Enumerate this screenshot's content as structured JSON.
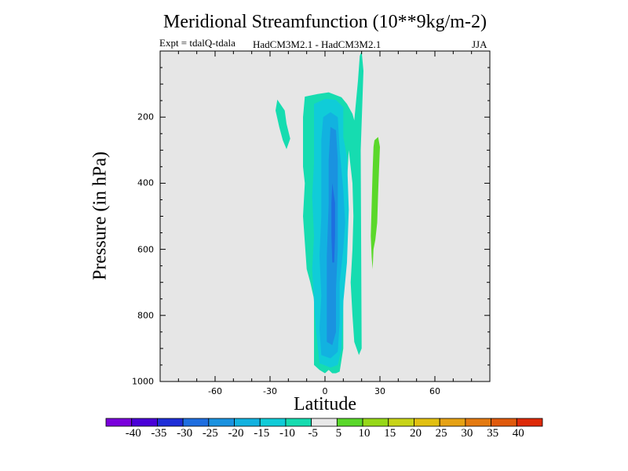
{
  "chart_data": {
    "type": "contour",
    "title": "Meridional Streamfunction (10**9kg/m-2)",
    "experiment": "Expt = tdalQ-tdala",
    "models": "HadCM3M2.1 - HadCM3M2.1",
    "season": "JJA",
    "xlabel": "Latitude",
    "ylabel": "Pressure (in hPa)",
    "xlim": [
      -90,
      90
    ],
    "ylim": [
      0,
      1000
    ],
    "x_ticks": [
      -60,
      -30,
      0,
      30,
      60
    ],
    "x_tick_labels": [
      "-60",
      "-30",
      "0",
      "30",
      "60"
    ],
    "y_ticks": [
      200,
      400,
      600,
      800,
      1000
    ],
    "y_tick_labels": [
      "200",
      "400",
      "600",
      "800",
      "1000"
    ],
    "levels": [
      -45,
      -40,
      -35,
      -30,
      -25,
      -20,
      -15,
      -10,
      -5,
      5,
      10,
      15,
      20,
      25,
      30,
      35,
      40,
      45
    ],
    "colorbar_labels": [
      "-40",
      "-35",
      "-30",
      "-25",
      "-20",
      "-15",
      "-10",
      "-5",
      "5",
      "10",
      "15",
      "20",
      "25",
      "30",
      "35",
      "40"
    ],
    "colors": [
      "#7a00dc",
      "#4a00d8",
      "#1e2ed8",
      "#1e6ee0",
      "#1a92e0",
      "#12b2e0",
      "#10ccd8",
      "#16dcb0",
      "#e8e8e8",
      "#5ad82a",
      "#96d818",
      "#c8d418",
      "#e2c010",
      "#e6a214",
      "#e47a10",
      "#e05a0c",
      "#de2a08"
    ],
    "background_color": "#e6e6e6",
    "contours": [
      {
        "level_min": -10,
        "level_max": -5,
        "lat_lon": [
          [
            -24,
            125
          ],
          [
            -25,
            175
          ],
          [
            -21,
            295
          ],
          [
            -19,
            215
          ],
          [
            -22,
            180
          ]
        ],
        "points": [
          [
            -25,
            230
          ],
          [
            -27,
            180
          ],
          [
            -26,
            147
          ],
          [
            -22,
            180
          ],
          [
            -21,
            220
          ],
          [
            -19,
            265
          ],
          [
            -21,
            297
          ],
          [
            -23,
            270
          ]
        ]
      },
      {
        "level_min": -10,
        "level_max": -5,
        "points": [
          [
            -11,
            138
          ],
          [
            -4,
            130
          ],
          [
            2,
            125
          ],
          [
            9,
            140
          ],
          [
            12,
            160
          ],
          [
            15,
            190
          ],
          [
            16,
            210
          ],
          [
            18,
            90
          ],
          [
            19,
            15
          ],
          [
            20,
            0
          ],
          [
            21,
            60
          ],
          [
            19.5,
            300
          ],
          [
            20,
            900
          ],
          [
            18.5,
            920
          ],
          [
            16,
            880
          ],
          [
            15,
            800
          ],
          [
            14,
            700
          ],
          [
            15,
            600
          ],
          [
            15.5,
            500
          ],
          [
            15,
            400
          ],
          [
            13,
            300
          ],
          [
            10,
            600
          ],
          [
            10,
            900
          ],
          [
            8,
            970
          ],
          [
            6,
            975
          ],
          [
            4,
            975
          ],
          [
            2,
            965
          ],
          [
            0,
            975
          ],
          [
            -3,
            965
          ],
          [
            -6,
            950
          ],
          [
            -6,
            850
          ],
          [
            -6,
            750
          ],
          [
            -8,
            700
          ],
          [
            -10,
            660
          ],
          [
            -12,
            500
          ],
          [
            -11,
            400
          ],
          [
            -12,
            350
          ],
          [
            -12,
            200
          ]
        ]
      },
      {
        "level_min": -15,
        "level_max": -10,
        "points": [
          [
            -6,
            160
          ],
          [
            0,
            145
          ],
          [
            6,
            148
          ],
          [
            10,
            170
          ],
          [
            10,
            260
          ],
          [
            12,
            320
          ],
          [
            13,
            480
          ],
          [
            12,
            640
          ],
          [
            10,
            760
          ],
          [
            9,
            900
          ],
          [
            7,
            950
          ],
          [
            3,
            958
          ],
          [
            -3,
            945
          ],
          [
            -5,
            840
          ],
          [
            -6,
            760
          ],
          [
            -7,
            660
          ],
          [
            -6,
            560
          ],
          [
            -7,
            440
          ],
          [
            -6,
            340
          ],
          [
            -6,
            240
          ]
        ]
      },
      {
        "level_min": -20,
        "level_max": -15,
        "points": [
          [
            -1,
            200
          ],
          [
            3,
            185
          ],
          [
            7,
            200
          ],
          [
            8,
            300
          ],
          [
            10,
            420
          ],
          [
            11,
            520
          ],
          [
            10,
            600
          ],
          [
            8,
            700
          ],
          [
            8,
            820
          ],
          [
            7,
            910
          ],
          [
            3,
            930
          ],
          [
            -2,
            920
          ],
          [
            -3,
            840
          ],
          [
            -2,
            740
          ],
          [
            -3,
            620
          ],
          [
            -2,
            500
          ],
          [
            -2,
            370
          ],
          [
            -2,
            270
          ]
        ]
      },
      {
        "level_min": -25,
        "level_max": -20,
        "points": [
          [
            3,
            230
          ],
          [
            6,
            240
          ],
          [
            7,
            330
          ],
          [
            7,
            460
          ],
          [
            7,
            600
          ],
          [
            6,
            720
          ],
          [
            6,
            850
          ],
          [
            4,
            890
          ],
          [
            1,
            880
          ],
          [
            1,
            760
          ],
          [
            1,
            620
          ],
          [
            2,
            460
          ],
          [
            2,
            330
          ]
        ]
      },
      {
        "level_min": -30,
        "level_max": -25,
        "points": [
          [
            4,
            400
          ],
          [
            5.5,
            460
          ],
          [
            5.5,
            560
          ],
          [
            5,
            640
          ],
          [
            4,
            640
          ],
          [
            3.5,
            560
          ],
          [
            3.5,
            460
          ]
        ]
      },
      {
        "level_min": 5,
        "level_max": 10,
        "points": [
          [
            27,
            270
          ],
          [
            29,
            260
          ],
          [
            30,
            290
          ],
          [
            29.5,
            360
          ],
          [
            29,
            430
          ],
          [
            28.5,
            520
          ],
          [
            27.5,
            570
          ],
          [
            26.5,
            600
          ],
          [
            26,
            660
          ],
          [
            25.5,
            625
          ],
          [
            25,
            560
          ],
          [
            25.5,
            460
          ],
          [
            26,
            360
          ],
          [
            26.5,
            290
          ]
        ]
      }
    ]
  }
}
